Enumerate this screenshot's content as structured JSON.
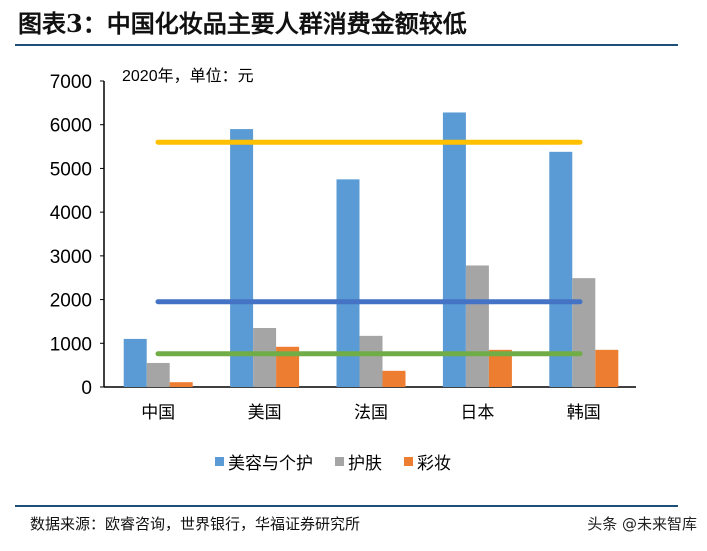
{
  "title": "图表3：中国化妆品主要人群消费金额较低",
  "source": "数据来源：欧睿咨询，世界银行，华福证券研究所",
  "watermark": "头条 @未来智库",
  "chart_data": {
    "type": "bar",
    "subtitle": "2020年，单位：元",
    "categories": [
      "中国",
      "美国",
      "法国",
      "日本",
      "韩国"
    ],
    "series": [
      {
        "name": "美容与个护",
        "color": "#5b9bd5",
        "values": [
          1100,
          5900,
          4750,
          6280,
          5380
        ]
      },
      {
        "name": "护肤",
        "color": "#a5a5a5",
        "values": [
          550,
          1350,
          1170,
          2780,
          2490
        ]
      },
      {
        "name": "彩妆",
        "color": "#ed7d31",
        "values": [
          110,
          920,
          370,
          850,
          850
        ]
      }
    ],
    "reference_lines": [
      {
        "color": "#ffc000",
        "value": 5600
      },
      {
        "color": "#4472c4",
        "value": 1950
      },
      {
        "color": "#70ad47",
        "value": 760
      }
    ],
    "yticks": [
      "0",
      "1000",
      "2000",
      "3000",
      "4000",
      "5000",
      "6000",
      "7000"
    ],
    "ylim": [
      0,
      7000
    ],
    "grid": false,
    "legend": "bottom"
  }
}
